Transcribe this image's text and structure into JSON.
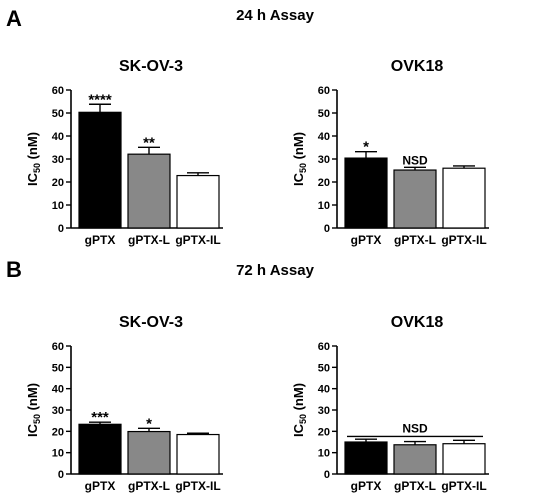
{
  "figure": {
    "panels": [
      {
        "letter": "A",
        "title": "24 h Assay"
      },
      {
        "letter": "B",
        "title": "72 h Assay"
      }
    ]
  },
  "chart_data": [
    {
      "type": "bar",
      "panel": "A",
      "title": "SK-OV-3",
      "categories": [
        "gPTX",
        "gPTX-L",
        "gPTX-IL"
      ],
      "values": [
        50.3,
        32.1,
        22.8
      ],
      "errors": [
        3.5,
        3.0,
        1.2
      ],
      "fills": [
        "#000000",
        "#888888",
        "#ffffff"
      ],
      "annotations": [
        "****",
        "**",
        ""
      ],
      "ylabel_main": "IC",
      "ylabel_sub": "50",
      "ylabel_unit": " (nM)",
      "ylim": [
        0,
        60
      ],
      "yticks": [
        0,
        10,
        20,
        30,
        40,
        50,
        60
      ],
      "grid": false,
      "legend": "none"
    },
    {
      "type": "bar",
      "panel": "A",
      "title": "OVK18",
      "categories": [
        "gPTX",
        "gPTX-L",
        "gPTX-IL"
      ],
      "values": [
        30.4,
        25.2,
        26.0
      ],
      "errors": [
        2.8,
        1.2,
        1.0
      ],
      "fills": [
        "#000000",
        "#888888",
        "#ffffff"
      ],
      "annotations": [
        "*",
        "NSD",
        ""
      ],
      "ylabel_main": "IC",
      "ylabel_sub": "50",
      "ylabel_unit": " (nM)",
      "ylim": [
        0,
        60
      ],
      "yticks": [
        0,
        10,
        20,
        30,
        40,
        50,
        60
      ],
      "grid": false,
      "legend": "none"
    },
    {
      "type": "bar",
      "panel": "B",
      "title": "SK-OV-3",
      "categories": [
        "gPTX",
        "gPTX-L",
        "gPTX-IL"
      ],
      "values": [
        23.3,
        19.9,
        18.5
      ],
      "errors": [
        1.0,
        1.5,
        0.6
      ],
      "fills": [
        "#000000",
        "#888888",
        "#ffffff"
      ],
      "annotations": [
        "***",
        "*",
        ""
      ],
      "ylabel_main": "IC",
      "ylabel_sub": "50",
      "ylabel_unit": " (nM)",
      "ylim": [
        0,
        60
      ],
      "yticks": [
        0,
        10,
        20,
        30,
        40,
        50,
        60
      ],
      "grid": false,
      "legend": "none"
    },
    {
      "type": "bar",
      "panel": "B",
      "title": "OVK18",
      "categories": [
        "gPTX",
        "gPTX-L",
        "gPTX-IL"
      ],
      "values": [
        15.0,
        13.7,
        14.2
      ],
      "errors": [
        1.3,
        1.5,
        1.6
      ],
      "fills": [
        "#000000",
        "#888888",
        "#ffffff"
      ],
      "annotations": [
        "",
        "",
        ""
      ],
      "bracket": {
        "label": "NSD",
        "from": 0,
        "to": 2,
        "at": 17.6
      },
      "ylabel_main": "IC",
      "ylabel_sub": "50",
      "ylabel_unit": " (nM)",
      "ylim": [
        0,
        60
      ],
      "yticks": [
        0,
        10,
        20,
        30,
        40,
        50,
        60
      ],
      "grid": false,
      "legend": "none"
    }
  ]
}
